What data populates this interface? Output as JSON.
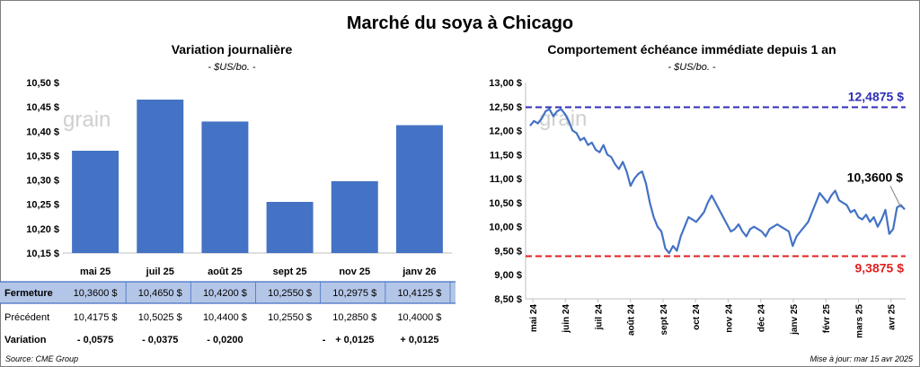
{
  "main_title": "Marché du soya à Chicago",
  "source": "Source: CME Group",
  "updated": "Mise à jour: mar 15 avr 2025",
  "watermark": "grain",
  "colors": {
    "bar": "#4472c4",
    "line": "#4472c4",
    "high": "#2e2eb8",
    "low": "#e02020",
    "positive": "#1e8c1e",
    "negative": "#e02020",
    "row_highlight": "#b4c6e7"
  },
  "chart_data": [
    {
      "type": "bar",
      "title": "Variation journalière",
      "subtitle": "- $US/bo. -",
      "categories": [
        "mai 25",
        "juil 25",
        "août 25",
        "sept 25",
        "nov 25",
        "janv 26"
      ],
      "values": [
        10.36,
        10.465,
        10.42,
        10.255,
        10.2975,
        10.4125
      ],
      "ylim": [
        10.15,
        10.5
      ],
      "yticks": [
        "10,15 $",
        "10,20 $",
        "10,25 $",
        "10,30 $",
        "10,35 $",
        "10,40 $",
        "10,45 $",
        "10,50 $"
      ],
      "ytick_values": [
        10.15,
        10.2,
        10.25,
        10.3,
        10.35,
        10.4,
        10.45,
        10.5
      ],
      "table": [
        {
          "label": "Fermeture",
          "highlight": true,
          "cells": [
            "10,3600  $",
            "10,4650  $",
            "10,4200  $",
            "10,2550  $",
            "10,2975  $",
            "10,4125  $"
          ]
        },
        {
          "label": "Précédent",
          "highlight": false,
          "cells": [
            "10,4175  $",
            "10,5025  $",
            "10,4400  $",
            "10,2550  $",
            "10,2850  $",
            "10,4000  $"
          ]
        },
        {
          "label": "Variation",
          "highlight": false,
          "bold": true,
          "cells": [
            "- 0,0575",
            "- 0,0375",
            "- 0,0200",
            "-",
            "+ 0,0125",
            "+ 0,0125"
          ],
          "signs": [
            "neg",
            "neg",
            "neg",
            "zero",
            "pos",
            "pos"
          ]
        }
      ]
    },
    {
      "type": "line",
      "title": "Comportement  échéance immédiate depuis 1 an",
      "subtitle": "- $US/bo. -",
      "ylim": [
        8.5,
        13.0
      ],
      "yticks": [
        "8,50 $",
        "9,00 $",
        "9,50 $",
        "10,00 $",
        "10,50 $",
        "11,00 $",
        "11,50 $",
        "12,00 $",
        "12,50 $",
        "13,00 $"
      ],
      "ytick_values": [
        8.5,
        9.0,
        9.5,
        10.0,
        10.5,
        11.0,
        11.5,
        12.0,
        12.5,
        13.0
      ],
      "xticks": [
        "mai 24",
        "juin 24",
        "juil 24",
        "août 24",
        "sept 24",
        "oct 24",
        "nov 24",
        "déc 24",
        "janv 25",
        "févr 25",
        "mars 25",
        "avr 25"
      ],
      "high": {
        "value": 12.4875,
        "label": "12,4875 $"
      },
      "low": {
        "value": 9.3875,
        "label": "9,3875 $"
      },
      "last": {
        "value": 10.36,
        "label": "10,3600 $"
      },
      "series": [
        12.1,
        12.2,
        12.15,
        12.25,
        12.4,
        12.45,
        12.3,
        12.4,
        12.45,
        12.35,
        12.2,
        12.0,
        11.95,
        11.8,
        11.85,
        11.7,
        11.75,
        11.6,
        11.55,
        11.7,
        11.5,
        11.45,
        11.3,
        11.2,
        11.35,
        11.15,
        10.85,
        11.0,
        11.1,
        11.15,
        10.9,
        10.5,
        10.2,
        10.0,
        9.9,
        9.55,
        9.45,
        9.6,
        9.5,
        9.8,
        10.0,
        10.2,
        10.15,
        10.1,
        10.2,
        10.3,
        10.5,
        10.65,
        10.5,
        10.35,
        10.2,
        10.05,
        9.9,
        9.95,
        10.05,
        9.9,
        9.8,
        9.95,
        10.0,
        9.95,
        9.9,
        9.8,
        9.95,
        10.0,
        10.05,
        10.0,
        9.95,
        9.9,
        9.6,
        9.8,
        9.9,
        10.0,
        10.1,
        10.3,
        10.5,
        10.7,
        10.6,
        10.5,
        10.65,
        10.75,
        10.55,
        10.5,
        10.45,
        10.3,
        10.35,
        10.2,
        10.15,
        10.25,
        10.1,
        10.2,
        10.0,
        10.15,
        10.35,
        9.85,
        9.95,
        10.4,
        10.45,
        10.36
      ]
    }
  ]
}
